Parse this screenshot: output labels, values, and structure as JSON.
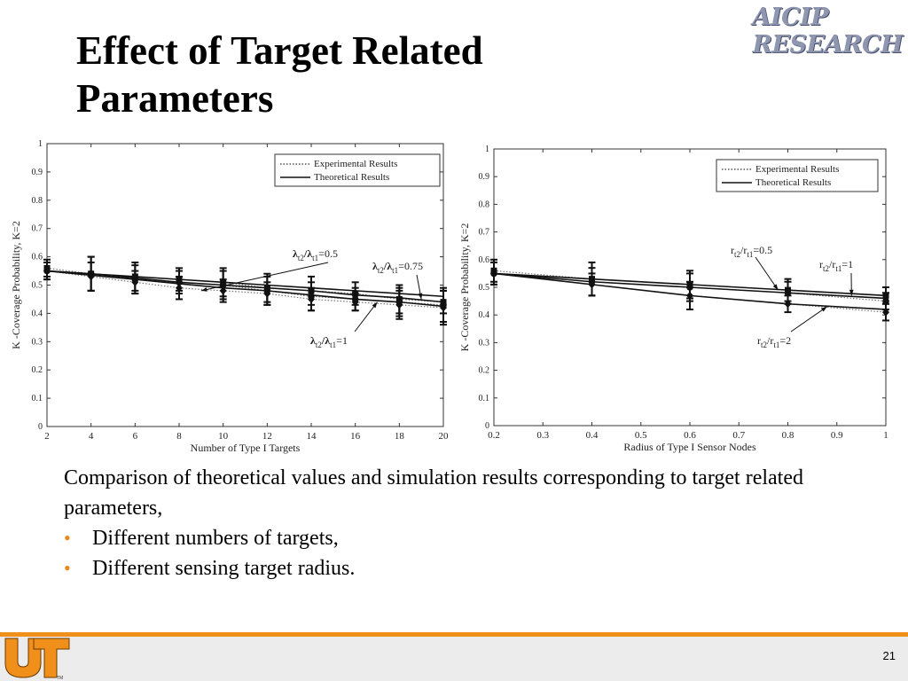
{
  "slide": {
    "title": "Effect of Target Related Parameters",
    "brand_line1": "AICIP",
    "brand_line2": "RESEARCH",
    "page_number": "21",
    "logo_tm": "TM"
  },
  "caption": {
    "text": "Comparison of theoretical values and simulation results corresponding to target related parameters,",
    "bullets": [
      "Different numbers of targets,",
      "Different sensing target radius."
    ]
  },
  "colors": {
    "accent_orange": "#f0901a",
    "brand_slate": "#8f97b0",
    "footer_gray": "#ececec"
  },
  "chart_data": [
    {
      "type": "line",
      "xlabel": "Number of Type I Targets",
      "ylabel": "K -Coverage Probability, K=2",
      "xlim": [
        2,
        20
      ],
      "ylim": [
        0,
        1
      ],
      "xticks": [
        "2",
        "4",
        "6",
        "8",
        "10",
        "12",
        "14",
        "16",
        "18",
        "20"
      ],
      "yticks": [
        "0",
        "0.1",
        "0.2",
        "0.3",
        "0.4",
        "0.5",
        "0.6",
        "0.7",
        "0.8",
        "0.9",
        "1"
      ],
      "legend": {
        "position": "top-right",
        "entries": [
          "Experimental Results",
          "Theoretical Results"
        ]
      },
      "x": [
        2,
        4,
        6,
        8,
        10,
        12,
        14,
        16,
        18,
        20
      ],
      "experimental": [
        {
          "values": [
            0.56,
            0.54,
            0.53,
            0.52,
            0.51,
            0.49,
            0.48,
            0.47,
            0.45,
            0.44
          ],
          "err": [
            0.03,
            0.06,
            0.05,
            0.04,
            0.05,
            0.05,
            0.05,
            0.04,
            0.05,
            0.04
          ]
        },
        {
          "values": [
            0.55,
            0.54,
            0.52,
            0.51,
            0.5,
            0.48,
            0.46,
            0.45,
            0.44,
            0.43
          ],
          "err": [
            0.03,
            0.06,
            0.05,
            0.04,
            0.05,
            0.05,
            0.05,
            0.04,
            0.05,
            0.06
          ]
        },
        {
          "values": [
            0.55,
            0.53,
            0.51,
            0.49,
            0.48,
            0.47,
            0.45,
            0.44,
            0.43,
            0.42
          ],
          "err": [
            0.03,
            0.05,
            0.04,
            0.04,
            0.04,
            0.04,
            0.04,
            0.03,
            0.05,
            0.06
          ]
        }
      ],
      "theoretical": [
        {
          "values": [
            0.55,
            0.54,
            0.53,
            0.52,
            0.51,
            0.5,
            0.49,
            0.48,
            0.47,
            0.46
          ]
        },
        {
          "values": [
            0.55,
            0.54,
            0.525,
            0.51,
            0.5,
            0.49,
            0.48,
            0.465,
            0.455,
            0.44
          ]
        },
        {
          "values": [
            0.55,
            0.535,
            0.52,
            0.505,
            0.49,
            0.48,
            0.465,
            0.45,
            0.44,
            0.425
          ]
        }
      ],
      "annotations": [
        {
          "label": "λt2/λt1=0.5",
          "parts": [
            "λ",
            "t2",
            "/λ",
            "t1",
            "=0.5"
          ]
        },
        {
          "label": "λt2/λt1=0.75",
          "parts": [
            "λ",
            "t2",
            "/λ",
            "t1",
            "=0.75"
          ]
        },
        {
          "label": "λt2/λt1=1",
          "parts": [
            "λ",
            "t2",
            "/λ",
            "t1",
            "=1"
          ]
        }
      ]
    },
    {
      "type": "line",
      "xlabel": "Radius of Type I Sensor Nodes",
      "ylabel": "K -Coverage Probability, K=2",
      "xlim": [
        0.2,
        1
      ],
      "ylim": [
        0,
        1
      ],
      "xticks": [
        "0.2",
        "0.3",
        "0.4",
        "0.5",
        "0.6",
        "0.7",
        "0.8",
        "0.9",
        "1"
      ],
      "yticks": [
        "0",
        "0.1",
        "0.2",
        "0.3",
        "0.4",
        "0.5",
        "0.6",
        "0.7",
        "0.8",
        "0.9",
        "1"
      ],
      "legend": {
        "position": "top-right",
        "entries": [
          "Experimental Results",
          "Theoretical Results"
        ]
      },
      "x": [
        0.2,
        0.4,
        0.6,
        0.8,
        1.0
      ],
      "experimental": [
        {
          "values": [
            0.56,
            0.53,
            0.51,
            0.49,
            0.47
          ],
          "err": [
            0.04,
            0.06,
            0.05,
            0.04,
            0.03
          ]
        },
        {
          "values": [
            0.55,
            0.52,
            0.5,
            0.48,
            0.45
          ],
          "err": [
            0.04,
            0.05,
            0.05,
            0.04,
            0.03
          ]
        },
        {
          "values": [
            0.55,
            0.51,
            0.47,
            0.44,
            0.41
          ],
          "err": [
            0.04,
            0.04,
            0.05,
            0.03,
            0.03
          ]
        }
      ],
      "theoretical": [
        {
          "values": [
            0.55,
            0.53,
            0.51,
            0.49,
            0.47
          ]
        },
        {
          "values": [
            0.55,
            0.52,
            0.5,
            0.48,
            0.46
          ]
        },
        {
          "values": [
            0.55,
            0.51,
            0.47,
            0.44,
            0.42
          ]
        }
      ],
      "annotations": [
        {
          "label": "rt2/rt1=0.5",
          "parts": [
            "r",
            "t2",
            "/r",
            "t1",
            "=0.5"
          ]
        },
        {
          "label": "rt2/rt1=1",
          "parts": [
            "r",
            "t2",
            "/r",
            "t1",
            "=1"
          ]
        },
        {
          "label": "rt2/rt1=2",
          "parts": [
            "r",
            "t2",
            "/r",
            "t1",
            "=2"
          ]
        }
      ]
    }
  ]
}
